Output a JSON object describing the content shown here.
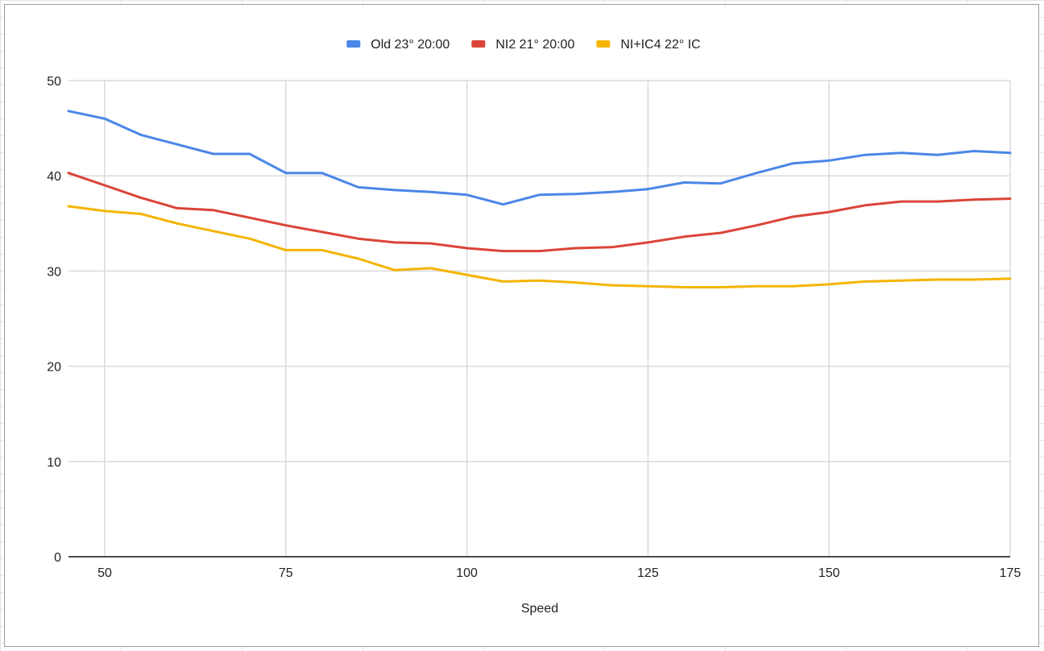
{
  "chart_data": {
    "type": "line",
    "title": "",
    "xlabel": "Speed",
    "ylabel": "",
    "xlim": [
      45,
      175
    ],
    "ylim": [
      0,
      50
    ],
    "x_ticks": [
      50,
      75,
      100,
      125,
      150,
      175
    ],
    "y_ticks": [
      0,
      10,
      20,
      30,
      40,
      50
    ],
    "grid": true,
    "legend_position": "top",
    "x": [
      45,
      50,
      55,
      60,
      65,
      70,
      75,
      80,
      85,
      90,
      95,
      100,
      105,
      110,
      115,
      120,
      125,
      130,
      135,
      140,
      145,
      150,
      155,
      160,
      165,
      170,
      175
    ],
    "series": [
      {
        "name": "Old 23° 20:00",
        "color": "#4a86e8",
        "values": [
          46.8,
          46.0,
          44.3,
          43.3,
          42.3,
          42.3,
          40.3,
          40.3,
          38.8,
          38.5,
          38.3,
          38.0,
          37.0,
          38.0,
          38.1,
          38.3,
          38.6,
          39.3,
          39.2,
          40.3,
          41.3,
          41.6,
          42.2,
          42.4,
          42.2,
          42.6,
          42.4
        ]
      },
      {
        "name": "NI2 21° 20:00",
        "color": "#db4437",
        "values": [
          40.3,
          39.0,
          37.7,
          36.6,
          36.4,
          35.6,
          34.8,
          34.1,
          33.4,
          33.0,
          32.9,
          32.4,
          32.1,
          32.1,
          32.4,
          32.5,
          33.0,
          33.6,
          34.0,
          34.8,
          35.7,
          36.2,
          36.9,
          37.3,
          37.3,
          37.5,
          37.6
        ]
      },
      {
        "name": "NI+IC4 22° IC",
        "color": "#f4b400",
        "values": [
          36.8,
          36.3,
          36.0,
          35.0,
          34.2,
          33.4,
          32.2,
          32.2,
          31.3,
          30.1,
          30.3,
          29.6,
          28.9,
          29.0,
          28.8,
          28.5,
          28.4,
          28.3,
          28.3,
          28.4,
          28.4,
          28.6,
          28.9,
          29.0,
          29.1,
          29.1,
          29.2
        ]
      }
    ]
  }
}
